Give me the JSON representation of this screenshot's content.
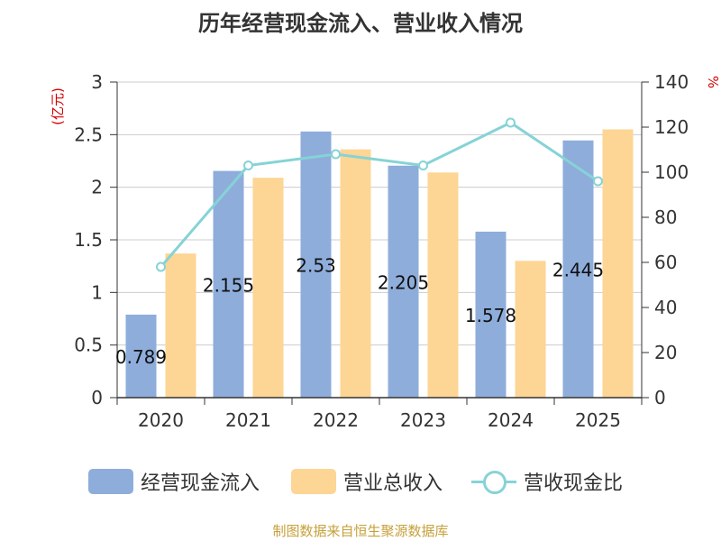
{
  "chart_data": {
    "type": "bar",
    "title": "历年经营现金流入、营业收入情况",
    "categories": [
      "2020",
      "2021",
      "2022",
      "2023",
      "2024",
      "2025"
    ],
    "y_left": {
      "unit_label": "(亿元)",
      "min": 0,
      "max": 3,
      "ticks": [
        "0",
        "0.5",
        "1",
        "1.5",
        "2",
        "2.5",
        "3"
      ]
    },
    "y_right": {
      "unit_label": "%",
      "min": 0,
      "max": 140,
      "ticks": [
        "0",
        "20",
        "40",
        "60",
        "80",
        "100",
        "120",
        "140"
      ]
    },
    "series": [
      {
        "name": "经营现金流入",
        "type": "bar",
        "axis": "left",
        "color": "#8eaddb",
        "values": [
          0.789,
          2.155,
          2.53,
          2.205,
          1.578,
          2.445
        ],
        "labels": [
          "0.789",
          "2.155",
          "2.53",
          "2.205",
          "1.578",
          "2.445"
        ]
      },
      {
        "name": "营业总收入",
        "type": "bar",
        "axis": "left",
        "color": "#fdd594",
        "values": [
          1.37,
          2.09,
          2.36,
          2.14,
          1.3,
          2.55
        ]
      },
      {
        "name": "营收现金比",
        "type": "line",
        "axis": "right",
        "color": "#86d3d6",
        "values": [
          58,
          103,
          108,
          103,
          122,
          96
        ]
      }
    ],
    "grid": true,
    "legend_position": "bottom",
    "source": "制图数据来自恒生聚源数据库"
  }
}
